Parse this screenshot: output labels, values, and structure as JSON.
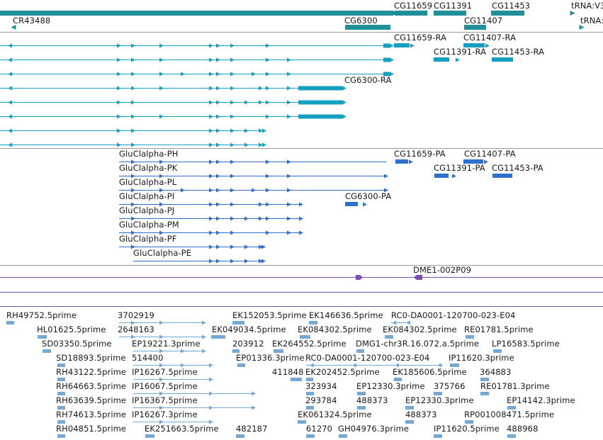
{
  "colors": {
    "gene": "#1f8f9a",
    "transcript": "#15a0c0",
    "protein": "#2f6fd0",
    "clone": "#7a4fb0",
    "est": "#74a9d6",
    "divider": "#9a9a9a",
    "text": "#1a1a1a"
  },
  "tracks": [
    {
      "id": "genes",
      "labels": [
        "CG11659",
        "CG11391",
        "CG11453",
        "tRNA:V3",
        "CR43488",
        "CG6300",
        "CG11407",
        "tRNA:"
      ]
    },
    {
      "id": "transcripts",
      "labels": [
        "CG11659-RA",
        "CG11407-RA",
        "CG11391-RA",
        "CG11453-RA",
        "CG6300-RA"
      ]
    },
    {
      "id": "proteins",
      "labels": [
        "GluClalpha-PH",
        "CG11659-PA",
        "CG11407-PA",
        "GluClalpha-PK",
        "CG11391-PA",
        "CG11453-PA",
        "GluClalpha-PL",
        "GluClalpha-PI",
        "CG6300-PA",
        "GluClalpha-PJ",
        "GluClalpha-PM",
        "GluClalpha-PF",
        "GluClalpha-PE"
      ]
    },
    {
      "id": "clones",
      "labels": [
        "DME1-002P09"
      ]
    },
    {
      "id": "ests",
      "labels": [
        "RH49752.5prime",
        "3702919",
        "EK152053.5prime",
        "EK146636.5prime",
        "RC0-DA0001-120700-023-E04",
        "HL01625.5prime",
        "2648163",
        "EK049034.5prime",
        "EK084302.5prime",
        "EK084302.5prime",
        "RE01781.5prime",
        "SD03350.5prime",
        "EP19221.3prime",
        "203912",
        "EK264552.5prime",
        "DMG1-chr3R.16.072.a.5prime",
        "LP16583.5prime",
        "SD18893.5prime",
        "514400",
        "EP01336.3prime",
        "RC0-DA0001-120700-023-E04",
        "IP11620.3prime",
        "RH43122.5prime",
        "IP16267.5prime",
        "411848",
        "EK202452.5prime",
        "EK185606.5prime",
        "364883",
        "RH64663.5prime",
        "IP16067.5prime",
        "323934",
        "EP12330.3prime",
        "375766",
        "RE01781.3prime",
        "RH63639.5prime",
        "IP16367.5prime",
        "293784",
        "488373",
        "EP12330.3prime",
        "EP14142.3prime",
        "RH74613.5prime",
        "IP16267.3prime",
        "EK061324.5prime",
        "488373",
        "RP001008471.5prime",
        "RH04851.5prime",
        "EK251663.5prime",
        "482187",
        "61270",
        "GH04976.3prime",
        "IP11620.5prime",
        "488968"
      ]
    }
  ]
}
